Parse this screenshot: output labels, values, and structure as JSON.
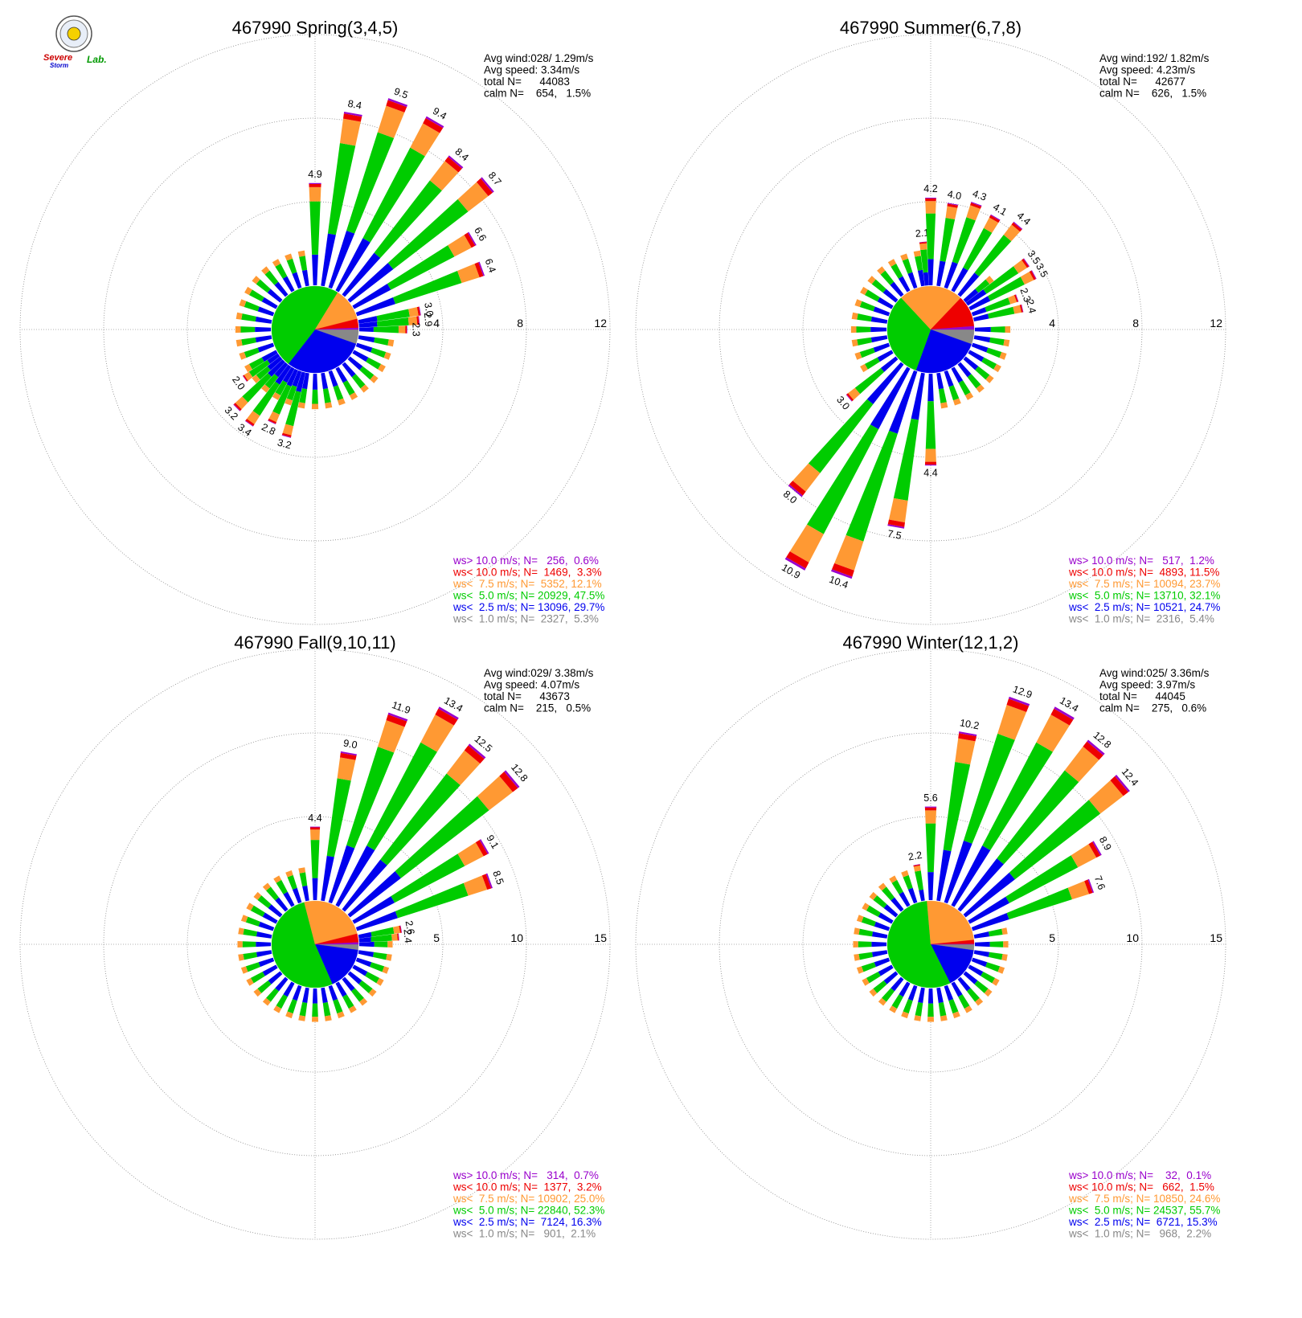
{
  "logo": {
    "word1": "Severe",
    "word2": "Storm",
    "word3": "Lab."
  },
  "colors": {
    "calm": "#888888",
    "lt2_5": "#0000ee",
    "lt5": "#00cc00",
    "lt7_5": "#ff9933",
    "lt10": "#ee0000",
    "gt10": "#9900cc"
  },
  "chart_data": [
    {
      "type": "wind-rose",
      "title": "467990 Spring(3,4,5)",
      "stats": [
        "Avg wind:028/ 1.29m/s",
        "Avg speed: 3.34m/s",
        "total N=      44083",
        "calm N=    654,   1.5%"
      ],
      "rings": [
        4,
        8,
        12
      ],
      "ring_labels": [
        "4",
        "8",
        "12"
      ],
      "legend": [
        {
          "text": "ws> 10.0 m/s; N=   256,  0.6%",
          "color": "#9900cc"
        },
        {
          "text": "ws< 10.0 m/s; N=  1469,  3.3%",
          "color": "#ee0000"
        },
        {
          "text": "ws<  7.5 m/s; N=  5352, 12.1%",
          "color": "#ff9933"
        },
        {
          "text": "ws<  5.0 m/s; N= 20929, 47.5%",
          "color": "#00cc00"
        },
        {
          "text": "ws<  2.5 m/s; N= 13096, 29.7%",
          "color": "#0000ee"
        },
        {
          "text": "ws<  1.0 m/s; N=  2327,  5.3%",
          "color": "#888888"
        }
      ],
      "pie": [
        5.3,
        29.7,
        47.5,
        12.1,
        3.3,
        0.6
      ],
      "labeled_bars": [
        {
          "dir": 0,
          "total": 4.9,
          "label": "4.9"
        },
        {
          "dir": 10,
          "total": 8.4,
          "label": "8.4"
        },
        {
          "dir": 20,
          "total": 9.5,
          "label": "9.5"
        },
        {
          "dir": 30,
          "total": 9.4,
          "label": "9.4"
        },
        {
          "dir": 40,
          "total": 8.4,
          "label": "8.4"
        },
        {
          "dir": 50,
          "total": 8.7,
          "label": "8.7"
        },
        {
          "dir": 60,
          "total": 6.6,
          "label": "6.6"
        },
        {
          "dir": 70,
          "total": 6.4,
          "label": "6.4"
        },
        {
          "dir": 80,
          "total": 3.0,
          "label": "3.0"
        },
        {
          "dir": 85,
          "total": 2.9,
          "label": "2.9"
        },
        {
          "dir": 90,
          "total": 2.3,
          "label": "2.3"
        },
        {
          "dir": 195,
          "total": 3.2,
          "label": "3.2"
        },
        {
          "dir": 205,
          "total": 2.8,
          "label": "2.8"
        },
        {
          "dir": 215,
          "total": 3.4,
          "label": "3.4"
        },
        {
          "dir": 225,
          "total": 3.2,
          "label": "3.2"
        },
        {
          "dir": 235,
          "total": 2.0,
          "label": "2.0"
        }
      ],
      "small_bars": 1.7
    },
    {
      "type": "wind-rose",
      "title": "467990 Summer(6,7,8)",
      "stats": [
        "Avg wind:192/ 1.82m/s",
        "Avg speed: 4.23m/s",
        "total N=      42677",
        "calm N=    626,   1.5%"
      ],
      "rings": [
        4,
        8,
        12
      ],
      "ring_labels": [
        "4",
        "8",
        "12"
      ],
      "legend": [
        {
          "text": "ws> 10.0 m/s; N=   517,  1.2%",
          "color": "#9900cc"
        },
        {
          "text": "ws< 10.0 m/s; N=  4893, 11.5%",
          "color": "#ee0000"
        },
        {
          "text": "ws<  7.5 m/s; N= 10094, 23.7%",
          "color": "#ff9933"
        },
        {
          "text": "ws<  5.0 m/s; N= 13710, 32.1%",
          "color": "#00cc00"
        },
        {
          "text": "ws<  2.5 m/s; N= 10521, 24.7%",
          "color": "#0000ee"
        },
        {
          "text": "ws<  1.0 m/s; N=  2316,  5.4%",
          "color": "#888888"
        }
      ],
      "pie": [
        5.4,
        24.7,
        32.1,
        23.7,
        11.5,
        1.2
      ],
      "labeled_bars": [
        {
          "dir": -5,
          "total": 2.1,
          "label": "2.1"
        },
        {
          "dir": 0,
          "total": 4.2,
          "label": "4.2"
        },
        {
          "dir": 10,
          "total": 4.0,
          "label": "4.0"
        },
        {
          "dir": 20,
          "total": 4.3,
          "label": "4.3"
        },
        {
          "dir": 30,
          "total": 4.1,
          "label": "4.1"
        },
        {
          "dir": 40,
          "total": 4.4,
          "label": "4.4"
        },
        {
          "dir": 55,
          "total": 3.5,
          "label": "3.5"
        },
        {
          "dir": 62,
          "total": 3.5,
          "label": "3.5"
        },
        {
          "dir": 70,
          "total": 2.3,
          "label": "2.3"
        },
        {
          "dir": 77,
          "total": 2.4,
          "label": "2.4"
        },
        {
          "dir": 180,
          "total": 4.4,
          "label": "4.4"
        },
        {
          "dir": 190,
          "total": 7.5,
          "label": "7.5"
        },
        {
          "dir": 200,
          "total": 10.4,
          "label": "10.4"
        },
        {
          "dir": 210,
          "total": 10.9,
          "label": "10.9"
        },
        {
          "dir": 220,
          "total": 8.0,
          "label": "8.0"
        },
        {
          "dir": 230,
          "total": 3.0,
          "label": "3.0"
        }
      ],
      "small_bars": 1.7
    },
    {
      "type": "wind-rose",
      "title": "467990 Fall(9,10,11)",
      "stats": [
        "Avg wind:029/ 3.38m/s",
        "Avg speed: 4.07m/s",
        "total N=      43673",
        "calm N=    215,   0.5%"
      ],
      "rings": [
        5,
        10,
        15
      ],
      "ring_labels": [
        "5",
        "10",
        "15"
      ],
      "legend": [
        {
          "text": "ws> 10.0 m/s; N=   314,  0.7%",
          "color": "#9900cc"
        },
        {
          "text": "ws< 10.0 m/s; N=  1377,  3.2%",
          "color": "#ee0000"
        },
        {
          "text": "ws<  7.5 m/s; N= 10902, 25.0%",
          "color": "#ff9933"
        },
        {
          "text": "ws<  5.0 m/s; N= 22840, 52.3%",
          "color": "#00cc00"
        },
        {
          "text": "ws<  2.5 m/s; N=  7124, 16.3%",
          "color": "#0000ee"
        },
        {
          "text": "ws<  1.0 m/s; N=   901,  2.1%",
          "color": "#888888"
        }
      ],
      "pie": [
        2.1,
        16.3,
        52.3,
        25.0,
        3.2,
        0.7
      ],
      "labeled_bars": [
        {
          "dir": 0,
          "total": 4.4,
          "label": "4.4"
        },
        {
          "dir": 10,
          "total": 9.0,
          "label": "9.0"
        },
        {
          "dir": 20,
          "total": 11.9,
          "label": "11.9"
        },
        {
          "dir": 30,
          "total": 13.4,
          "label": "13.4"
        },
        {
          "dir": 40,
          "total": 12.5,
          "label": "12.5"
        },
        {
          "dir": 50,
          "total": 12.8,
          "label": "12.8"
        },
        {
          "dir": 60,
          "total": 9.1,
          "label": "9.1"
        },
        {
          "dir": 70,
          "total": 8.5,
          "label": "8.5"
        },
        {
          "dir": 80,
          "total": 2.6,
          "label": "2.6"
        },
        {
          "dir": 85,
          "total": 2.4,
          "label": "2.4"
        }
      ],
      "small_bars": 2.0
    },
    {
      "type": "wind-rose",
      "title": "467990 Winter(12,1,2)",
      "stats": [
        "Avg wind:025/ 3.36m/s",
        "Avg speed: 3.97m/s",
        "total N=      44045",
        "calm N=    275,   0.6%"
      ],
      "rings": [
        5,
        10,
        15
      ],
      "ring_labels": [
        "5",
        "10",
        "15"
      ],
      "legend": [
        {
          "text": "ws> 10.0 m/s; N=    32,  0.1%",
          "color": "#9900cc"
        },
        {
          "text": "ws< 10.0 m/s; N=   662,  1.5%",
          "color": "#ee0000"
        },
        {
          "text": "ws<  7.5 m/s; N= 10850, 24.6%",
          "color": "#ff9933"
        },
        {
          "text": "ws<  5.0 m/s; N= 24537, 55.7%",
          "color": "#00cc00"
        },
        {
          "text": "ws<  2.5 m/s; N=  6721, 15.3%",
          "color": "#0000ee"
        },
        {
          "text": "ws<  1.0 m/s; N=   968,  2.2%",
          "color": "#888888"
        }
      ],
      "pie": [
        2.2,
        15.3,
        55.7,
        24.6,
        1.5,
        0.1
      ],
      "labeled_bars": [
        {
          "dir": -10,
          "total": 2.2,
          "label": "2.2"
        },
        {
          "dir": 0,
          "total": 5.6,
          "label": "5.6"
        },
        {
          "dir": 10,
          "total": 10.2,
          "label": "10.2"
        },
        {
          "dir": 20,
          "total": 12.9,
          "label": "12.9"
        },
        {
          "dir": 30,
          "total": 13.4,
          "label": "13.4"
        },
        {
          "dir": 40,
          "total": 12.8,
          "label": "12.8"
        },
        {
          "dir": 50,
          "total": 12.4,
          "label": "12.4"
        },
        {
          "dir": 60,
          "total": 8.9,
          "label": "8.9"
        },
        {
          "dir": 70,
          "total": 7.6,
          "label": "7.6"
        }
      ],
      "small_bars": 2.0
    }
  ]
}
